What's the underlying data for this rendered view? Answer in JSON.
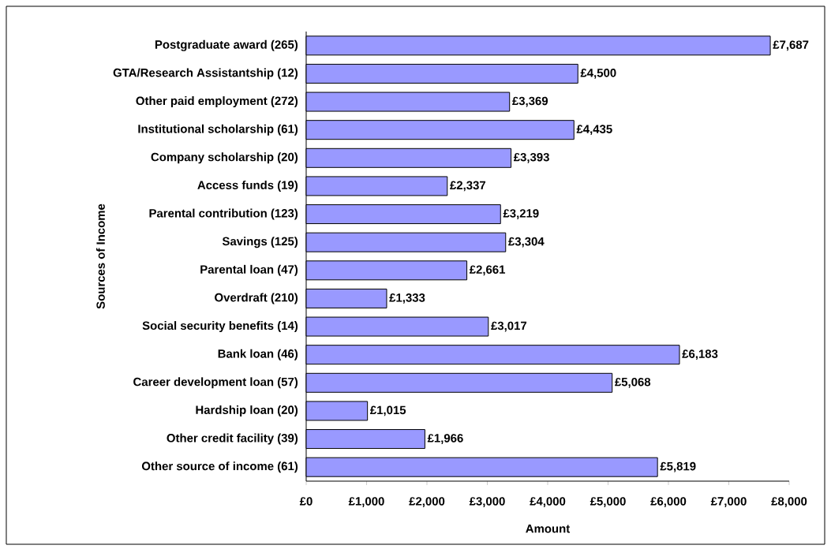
{
  "chart_data": {
    "type": "bar",
    "orientation": "horizontal",
    "categories": [
      "Postgraduate award (265)",
      "GTA/Research Assistantship (12)",
      "Other paid employment (272)",
      "Institutional scholarship (61)",
      "Company scholarship (20)",
      "Access funds (19)",
      "Parental contribution (123)",
      "Savings (125)",
      "Parental loan (47)",
      "Overdraft (210)",
      "Social security benefits (14)",
      "Bank loan (46)",
      "Career development loan (57)",
      "Hardship loan (20)",
      "Other credit facility (39)",
      "Other source of income (61)"
    ],
    "values": [
      7687,
      4500,
      3369,
      4435,
      3393,
      2337,
      3219,
      3304,
      2661,
      1333,
      3017,
      6183,
      5068,
      1015,
      1966,
      5819
    ],
    "value_labels": [
      "£7,687",
      "£4,500",
      "£3,369",
      "£4,435",
      "£3,393",
      "£2,337",
      "£3,219",
      "£3,304",
      "£2,661",
      "£1,333",
      "£3,017",
      "£6,183",
      "£5,068",
      "£1,015",
      "£1,966",
      "£5,819"
    ],
    "color": "#9999ff",
    "xlabel": "Amount",
    "ylabel": "Sources of Income",
    "xlim": [
      0,
      8000
    ],
    "xticks": [
      {
        "value": 0,
        "label": "£0"
      },
      {
        "value": 1000,
        "label": "£1,000"
      },
      {
        "value": 2000,
        "label": "£2,000"
      },
      {
        "value": 3000,
        "label": "£3,000"
      },
      {
        "value": 4000,
        "label": "£4,000"
      },
      {
        "value": 5000,
        "label": "£5,000"
      },
      {
        "value": 6000,
        "label": "£6,000"
      },
      {
        "value": 7000,
        "label": "£7,000"
      },
      {
        "value": 8000,
        "label": "£8,000"
      }
    ]
  }
}
